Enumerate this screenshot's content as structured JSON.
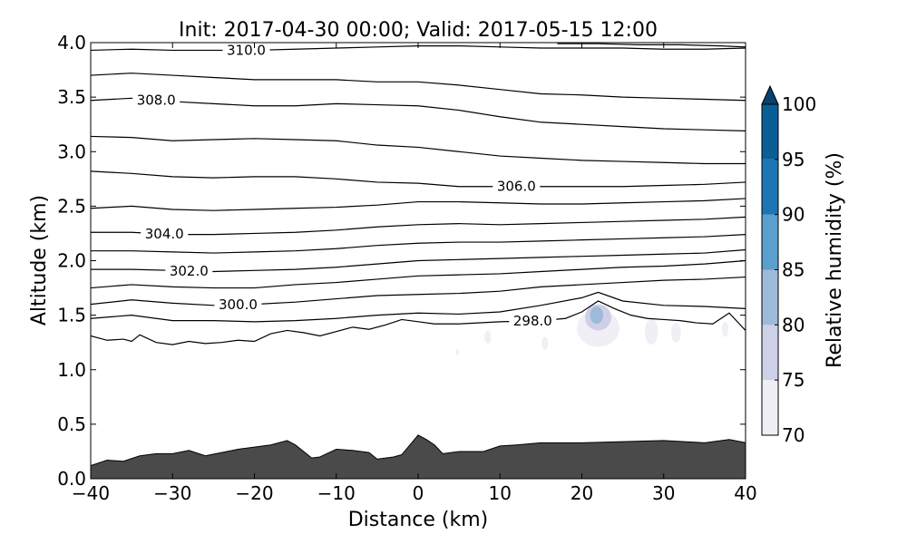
{
  "chart_data": {
    "type": "contour",
    "title": "Init: 2017-04-30 00:00; Valid: 2017-05-15 12:00",
    "xlabel": "Distance (km)",
    "ylabel": "Altitude (km)",
    "xlim": [
      -40,
      40
    ],
    "ylim": [
      0,
      4.0
    ],
    "x_ticks": [
      -40,
      -30,
      -20,
      -10,
      0,
      10,
      20,
      30,
      40
    ],
    "x_tick_labels": [
      "−40",
      "−30",
      "−20",
      "−10",
      "0",
      "10",
      "20",
      "30",
      "40"
    ],
    "y_ticks": [
      0,
      0.5,
      1.0,
      1.5,
      2.0,
      2.5,
      3.0,
      3.5,
      4.0
    ],
    "y_tick_labels": [
      "0.0",
      "0.5",
      "1.0",
      "1.5",
      "2.0",
      "2.5",
      "3.0",
      "3.5",
      "4.0"
    ],
    "colorbar": {
      "label": "Relative humidity (%)",
      "levels": [
        70,
        75,
        80,
        85,
        90,
        95,
        100
      ],
      "tick_labels": [
        "70",
        "75",
        "80",
        "85",
        "90",
        "95",
        "100"
      ],
      "colors": [
        "#f1eef6",
        "#cdd0e6",
        "#9ebad9",
        "#5a9fcd",
        "#1d76b3",
        "#0a5e96",
        "#08436e"
      ],
      "extend": "max"
    },
    "terrain": {
      "color": "#4a4a4a",
      "x": [
        -40,
        -38,
        -36,
        -34,
        -32,
        -30,
        -28,
        -26,
        -24,
        -22,
        -20,
        -18,
        -16,
        -15,
        -13,
        -12,
        -10,
        -8,
        -6,
        -5,
        -3,
        -2,
        0,
        1,
        2,
        3,
        5,
        8,
        10,
        12,
        15,
        18,
        20,
        25,
        30,
        35,
        38,
        40
      ],
      "y": [
        0.12,
        0.17,
        0.16,
        0.21,
        0.23,
        0.23,
        0.26,
        0.21,
        0.24,
        0.27,
        0.29,
        0.31,
        0.35,
        0.31,
        0.19,
        0.2,
        0.27,
        0.26,
        0.24,
        0.18,
        0.2,
        0.22,
        0.4,
        0.36,
        0.31,
        0.23,
        0.25,
        0.25,
        0.3,
        0.31,
        0.33,
        0.33,
        0.33,
        0.34,
        0.35,
        0.33,
        0.36,
        0.33
      ]
    },
    "contour_levels_labeled": [
      "298.0",
      "300.0",
      "302.0",
      "304.0",
      "306.0",
      "308.0",
      "310.0"
    ],
    "contours": [
      {
        "x": [
          -40,
          -38,
          -36,
          -35,
          -34,
          -32,
          -30,
          -28,
          -26,
          -24,
          -22,
          -20,
          -18,
          -16,
          -14,
          -12,
          -10,
          -8,
          -6,
          -4,
          -2,
          0,
          2,
          5,
          10,
          15,
          18,
          20,
          22,
          24,
          26,
          28,
          30,
          32,
          34,
          36,
          38,
          40
        ],
        "y": [
          1.31,
          1.27,
          1.28,
          1.26,
          1.32,
          1.25,
          1.23,
          1.26,
          1.24,
          1.25,
          1.27,
          1.26,
          1.33,
          1.36,
          1.34,
          1.31,
          1.35,
          1.39,
          1.37,
          1.41,
          1.46,
          1.44,
          1.42,
          1.42,
          1.44,
          1.45,
          1.47,
          1.53,
          1.63,
          1.56,
          1.5,
          1.47,
          1.46,
          1.45,
          1.43,
          1.42,
          1.52,
          1.36
        ],
        "label": "298.0",
        "label_x": 14
      },
      {
        "x": [
          -40,
          -35,
          -30,
          -25,
          -20,
          -15,
          -10,
          -5,
          0,
          5,
          10,
          15,
          20,
          22,
          25,
          30,
          35,
          40
        ],
        "y": [
          1.47,
          1.5,
          1.45,
          1.45,
          1.44,
          1.45,
          1.47,
          1.5,
          1.52,
          1.51,
          1.53,
          1.59,
          1.66,
          1.71,
          1.63,
          1.59,
          1.58,
          1.56
        ],
        "label": null
      },
      {
        "x": [
          -40,
          -35,
          -30,
          -25,
          -20,
          -15,
          -10,
          -5,
          0,
          5,
          10,
          15,
          20,
          25,
          30,
          35,
          40
        ],
        "y": [
          1.6,
          1.64,
          1.61,
          1.59,
          1.6,
          1.62,
          1.65,
          1.68,
          1.69,
          1.7,
          1.72,
          1.76,
          1.78,
          1.8,
          1.82,
          1.83,
          1.85
        ],
        "label": "300.0",
        "label_x": -22
      },
      {
        "x": [
          -40,
          -35,
          -30,
          -25,
          -20,
          -15,
          -10,
          -5,
          0,
          5,
          10,
          15,
          20,
          25,
          30,
          35,
          40
        ],
        "y": [
          1.75,
          1.78,
          1.76,
          1.75,
          1.75,
          1.78,
          1.8,
          1.83,
          1.86,
          1.87,
          1.88,
          1.9,
          1.92,
          1.94,
          1.95,
          1.97,
          2.0
        ],
        "label": null
      },
      {
        "x": [
          -40,
          -35,
          -30,
          -25,
          -20,
          -15,
          -10,
          -5,
          0,
          5,
          10,
          15,
          20,
          25,
          30,
          35,
          40
        ],
        "y": [
          1.92,
          1.92,
          1.91,
          1.9,
          1.91,
          1.92,
          1.94,
          1.97,
          2.0,
          2.01,
          2.02,
          2.03,
          2.04,
          2.05,
          2.06,
          2.07,
          2.1
        ],
        "label": "302.0",
        "label_x": -28
      },
      {
        "x": [
          -40,
          -35,
          -30,
          -25,
          -20,
          -15,
          -10,
          -5,
          0,
          5,
          10,
          15,
          20,
          25,
          30,
          35,
          40
        ],
        "y": [
          2.09,
          2.09,
          2.08,
          2.07,
          2.08,
          2.09,
          2.11,
          2.14,
          2.16,
          2.17,
          2.17,
          2.18,
          2.19,
          2.2,
          2.21,
          2.22,
          2.24
        ],
        "label": null
      },
      {
        "x": [
          -40,
          -35,
          -30,
          -25,
          -20,
          -15,
          -10,
          -5,
          0,
          5,
          10,
          15,
          20,
          25,
          30,
          35,
          40
        ],
        "y": [
          2.26,
          2.26,
          2.24,
          2.24,
          2.25,
          2.26,
          2.28,
          2.31,
          2.33,
          2.34,
          2.33,
          2.34,
          2.35,
          2.36,
          2.37,
          2.38,
          2.4
        ],
        "label": "304.0",
        "label_x": -31
      },
      {
        "x": [
          -40,
          -35,
          -30,
          -25,
          -20,
          -15,
          -10,
          -5,
          0,
          5,
          10,
          15,
          20,
          25,
          30,
          35,
          40
        ],
        "y": [
          2.48,
          2.5,
          2.47,
          2.46,
          2.47,
          2.48,
          2.49,
          2.51,
          2.54,
          2.54,
          2.53,
          2.52,
          2.52,
          2.53,
          2.54,
          2.55,
          2.57
        ],
        "label": null
      },
      {
        "x": [
          -40,
          -35,
          -30,
          -25,
          -20,
          -15,
          -10,
          -5,
          0,
          5,
          10,
          15,
          20,
          25,
          30,
          35,
          40
        ],
        "y": [
          2.82,
          2.8,
          2.77,
          2.76,
          2.77,
          2.77,
          2.75,
          2.72,
          2.71,
          2.68,
          2.68,
          2.68,
          2.68,
          2.68,
          2.69,
          2.7,
          2.72
        ],
        "label": "306.0",
        "label_x": 12
      },
      {
        "x": [
          -40,
          -35,
          -30,
          -25,
          -20,
          -15,
          -10,
          -5,
          0,
          5,
          10,
          15,
          20,
          25,
          30,
          35,
          40
        ],
        "y": [
          3.14,
          3.13,
          3.1,
          3.11,
          3.12,
          3.11,
          3.1,
          3.06,
          3.04,
          3.0,
          2.96,
          2.94,
          2.92,
          2.91,
          2.9,
          2.89,
          2.89
        ],
        "label": null
      },
      {
        "x": [
          -40,
          -35,
          -30,
          -25,
          -20,
          -15,
          -10,
          -5,
          0,
          5,
          10,
          15,
          20,
          25,
          30,
          35,
          40
        ],
        "y": [
          3.47,
          3.49,
          3.46,
          3.44,
          3.42,
          3.42,
          3.44,
          3.43,
          3.42,
          3.38,
          3.32,
          3.27,
          3.25,
          3.23,
          3.21,
          3.2,
          3.19
        ],
        "label": "308.0",
        "label_x": -32
      },
      {
        "x": [
          -40,
          -35,
          -30,
          -25,
          -20,
          -15,
          -10,
          -5,
          0,
          5,
          10,
          15,
          20,
          25,
          30,
          35,
          40
        ],
        "y": [
          3.7,
          3.72,
          3.7,
          3.68,
          3.66,
          3.66,
          3.66,
          3.64,
          3.64,
          3.61,
          3.57,
          3.53,
          3.52,
          3.5,
          3.49,
          3.48,
          3.47
        ],
        "label": null
      },
      {
        "x": [
          -40,
          -35,
          -30,
          -25,
          -20,
          -15,
          -10,
          -5,
          0,
          5,
          10,
          15,
          20,
          25,
          30,
          35,
          40
        ],
        "y": [
          3.93,
          3.94,
          3.93,
          3.93,
          3.93,
          3.94,
          3.95,
          3.96,
          3.97,
          3.97,
          3.96,
          3.95,
          3.95,
          3.95,
          3.94,
          3.94,
          3.95
        ],
        "label": "310.0",
        "label_x": -21
      },
      {
        "x": [
          17,
          22,
          27,
          32,
          37,
          40
        ],
        "y": [
          3.99,
          3.99,
          3.98,
          3.98,
          3.97,
          3.96
        ],
        "label": null
      }
    ],
    "rh_patches": [
      {
        "rh": 72,
        "cx": 22,
        "cy": 1.38,
        "rx": 2.6,
        "ry": 0.17
      },
      {
        "rh": 72,
        "cx": 28.5,
        "cy": 1.35,
        "rx": 0.8,
        "ry": 0.12
      },
      {
        "rh": 72,
        "cx": 31.5,
        "cy": 1.34,
        "rx": 0.6,
        "ry": 0.09
      },
      {
        "rh": 72,
        "cx": 37.5,
        "cy": 1.37,
        "rx": 0.4,
        "ry": 0.07
      },
      {
        "rh": 72,
        "cx": 8.5,
        "cy": 1.3,
        "rx": 0.4,
        "ry": 0.06
      },
      {
        "rh": 72,
        "cx": 15.5,
        "cy": 1.24,
        "rx": 0.4,
        "ry": 0.06
      },
      {
        "rh": 72,
        "cx": 4.8,
        "cy": 1.16,
        "rx": 0.2,
        "ry": 0.03
      },
      {
        "rh": 77,
        "cx": 22,
        "cy": 1.48,
        "rx": 1.6,
        "ry": 0.12
      },
      {
        "rh": 82,
        "cx": 21.8,
        "cy": 1.5,
        "rx": 0.8,
        "ry": 0.08
      }
    ]
  }
}
